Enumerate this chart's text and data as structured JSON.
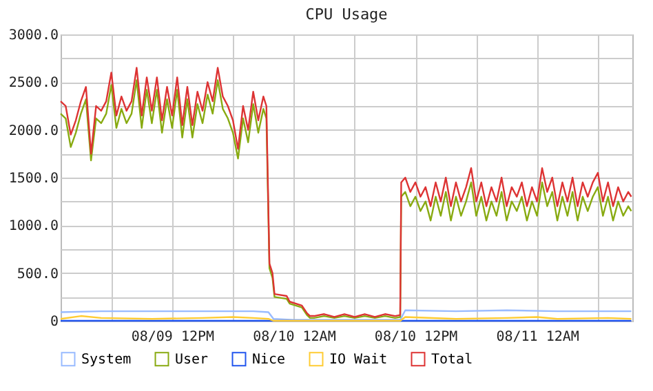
{
  "chart_data": {
    "type": "line",
    "title": "CPU Usage",
    "x": [
      "--08-09T01:00",
      "--08-09T01:30",
      "--08-09T02:00",
      "--08-09T02:30",
      "--08-09T03:00",
      "--08-09T03:30",
      "--08-09T04:00",
      "--08-09T04:30",
      "--08-09T05:00",
      "--08-09T05:30",
      "--08-09T06:00",
      "--08-09T06:30",
      "--08-09T07:00",
      "--08-09T07:30",
      "--08-09T08:00",
      "--08-09T08:30",
      "--08-09T09:00",
      "--08-09T09:30",
      "--08-09T10:00",
      "--08-09T10:30",
      "--08-09T11:00",
      "--08-09T11:30",
      "--08-09T12:00",
      "--08-09T12:30",
      "--08-09T13:00",
      "--08-09T13:30",
      "--08-09T14:00",
      "--08-09T14:30",
      "--08-09T15:00",
      "--08-09T15:30",
      "--08-09T16:00",
      "--08-09T16:30",
      "--08-09T17:00",
      "--08-09T17:30",
      "--08-09T18:00",
      "--08-09T18:30",
      "--08-09T19:00",
      "--08-09T19:30",
      "--08-09T20:00",
      "--08-09T20:30",
      "--08-09T21:00",
      "--08-09T21:18",
      "--08-09T21:36",
      "--08-09T21:54",
      "--08-09T22:06",
      "--08-09T23:18",
      "--08-09T23:36",
      "--08-10T00:48",
      "--08-10T01:18",
      "--08-10T01:36",
      "--08-10T02:00",
      "--08-10T03:00",
      "--08-10T04:00",
      "--08-10T05:00",
      "--08-10T06:00",
      "--08-10T07:00",
      "--08-10T08:00",
      "--08-10T09:00",
      "--08-10T10:00",
      "--08-10T10:30",
      "--08-10T10:36",
      "--08-10T11:00",
      "--08-10T11:30",
      "--08-10T12:00",
      "--08-10T12:30",
      "--08-10T13:00",
      "--08-10T13:30",
      "--08-10T14:00",
      "--08-10T14:30",
      "--08-10T15:00",
      "--08-10T15:30",
      "--08-10T16:00",
      "--08-10T16:30",
      "--08-10T17:00",
      "--08-10T17:30",
      "--08-10T18:00",
      "--08-10T18:30",
      "--08-10T19:00",
      "--08-10T19:30",
      "--08-10T20:00",
      "--08-10T20:30",
      "--08-10T21:00",
      "--08-10T21:30",
      "--08-10T22:00",
      "--08-10T22:30",
      "--08-10T23:00",
      "--08-10T23:30",
      "--08-11T00:00",
      "--08-11T00:30",
      "--08-11T01:00",
      "--08-11T01:30",
      "--08-11T02:00",
      "--08-11T02:30",
      "--08-11T03:00",
      "--08-11T03:30",
      "--08-11T04:00",
      "--08-11T04:30",
      "--08-11T05:00",
      "--08-11T05:30",
      "--08-11T06:00",
      "--08-11T06:30",
      "--08-11T07:00",
      "--08-11T07:30",
      "--08-11T08:00",
      "--08-11T08:30",
      "--08-11T09:00",
      "--08-11T09:18"
    ],
    "series": [
      {
        "name": "System",
        "color": "#99bbff",
        "x": [
          "--08-09T01:00",
          "--08-09T05:00",
          "--08-09T10:00",
          "--08-09T15:00",
          "--08-09T20:00",
          "--08-09T21:30",
          "--08-09T22:00",
          "--08-10T00:00",
          "--08-10T06:00",
          "--08-10T10:30",
          "--08-10T11:00",
          "--08-10T16:00",
          "--08-10T21:00",
          "--08-11T02:00",
          "--08-11T07:00",
          "--08-11T09:18"
        ],
        "values": [
          90,
          100,
          100,
          100,
          100,
          90,
          20,
          10,
          10,
          10,
          110,
          100,
          110,
          100,
          100,
          100
        ]
      },
      {
        "name": "User",
        "color": "#88aa11",
        "values": [
          2170,
          2120,
          1820,
          1970,
          2170,
          2320,
          1680,
          2120,
          2070,
          2170,
          2470,
          2020,
          2220,
          2070,
          2170,
          2520,
          2020,
          2420,
          2070,
          2420,
          1970,
          2320,
          2020,
          2420,
          1920,
          2320,
          1920,
          2270,
          2070,
          2370,
          2170,
          2520,
          2220,
          2120,
          1970,
          1700,
          2120,
          1870,
          2270,
          1970,
          2220,
          2120,
          550,
          450,
          250,
          230,
          180,
          140,
          60,
          30,
          30,
          50,
          30,
          50,
          30,
          50,
          30,
          50,
          30,
          40,
          1300,
          1350,
          1200,
          1300,
          1150,
          1250,
          1050,
          1300,
          1100,
          1350,
          1050,
          1300,
          1100,
          1250,
          1450,
          1100,
          1300,
          1050,
          1250,
          1100,
          1350,
          1050,
          1250,
          1150,
          1300,
          1050,
          1250,
          1100,
          1450,
          1200,
          1350,
          1050,
          1300,
          1100,
          1350,
          1050,
          1300,
          1150,
          1300,
          1400,
          1100,
          1300,
          1050,
          1250,
          1100,
          1200,
          1150
        ]
      },
      {
        "name": "Nice",
        "color": "#2255ee",
        "x": [
          "--08-09T01:00",
          "--08-11T09:18"
        ],
        "values": [
          0,
          0
        ]
      },
      {
        "name": "IO Wait",
        "color": "#ffcc33",
        "x": [
          "--08-09T01:00",
          "--08-09T03:00",
          "--08-09T05:00",
          "--08-09T10:00",
          "--08-09T15:00",
          "--08-09T18:00",
          "--08-09T20:00",
          "--08-09T21:30",
          "--08-09T22:00",
          "--08-10T06:00",
          "--08-10T10:30",
          "--08-10T11:00",
          "--08-10T16:00",
          "--08-10T21:00",
          "--08-11T00:00",
          "--08-11T02:00",
          "--08-11T07:00",
          "--08-11T09:18"
        ],
        "values": [
          20,
          50,
          30,
          20,
          30,
          40,
          30,
          20,
          0,
          0,
          0,
          40,
          20,
          30,
          40,
          20,
          30,
          20
        ]
      },
      {
        "name": "Total",
        "color": "#dd3333",
        "values": [
          2300,
          2250,
          1950,
          2100,
          2300,
          2450,
          1750,
          2250,
          2200,
          2300,
          2600,
          2150,
          2350,
          2200,
          2300,
          2650,
          2150,
          2550,
          2200,
          2550,
          2100,
          2450,
          2150,
          2550,
          2050,
          2450,
          2050,
          2400,
          2200,
          2500,
          2300,
          2650,
          2350,
          2250,
          2100,
          1800,
          2250,
          2000,
          2400,
          2100,
          2350,
          2250,
          600,
          500,
          280,
          260,
          200,
          160,
          80,
          50,
          50,
          70,
          40,
          70,
          40,
          70,
          40,
          70,
          50,
          60,
          1450,
          1500,
          1350,
          1450,
          1300,
          1400,
          1200,
          1450,
          1250,
          1500,
          1200,
          1450,
          1250,
          1400,
          1600,
          1250,
          1450,
          1200,
          1400,
          1250,
          1500,
          1200,
          1400,
          1300,
          1450,
          1200,
          1400,
          1250,
          1600,
          1350,
          1500,
          1200,
          1450,
          1250,
          1500,
          1200,
          1450,
          1300,
          1450,
          1550,
          1250,
          1450,
          1200,
          1400,
          1250,
          1350,
          1300
        ]
      }
    ],
    "xlim": [
      "--08-09T01:00",
      "--08-11T09:24"
    ],
    "xticks": [
      {
        "value": "--08-09T06:00",
        "label": null
      },
      {
        "value": "--08-09T12:00",
        "label": "08/09 12PM"
      },
      {
        "value": "--08-09T18:00",
        "label": null
      },
      {
        "value": "--08-10T00:00",
        "label": "08/10 12AM"
      },
      {
        "value": "--08-10T06:00",
        "label": null
      },
      {
        "value": "--08-10T12:00",
        "label": "08/10 12PM"
      },
      {
        "value": "--08-10T18:00",
        "label": null
      },
      {
        "value": "--08-11T00:00",
        "label": "08/11 12AM"
      },
      {
        "value": "--08-11T06:00",
        "label": null
      }
    ],
    "ylim": [
      0,
      3000
    ],
    "yticks": [
      0,
      {
        "value": 250,
        "label": null
      },
      {
        "value": 500,
        "label": "500.0"
      },
      {
        "value": 750,
        "label": null
      },
      {
        "value": 1000,
        "label": "1000.0"
      },
      {
        "value": 1250,
        "label": null
      },
      {
        "value": 1500,
        "label": "1500.0"
      },
      {
        "value": 1750,
        "label": null
      },
      {
        "value": 2000,
        "label": "2000.0"
      },
      {
        "value": 2250,
        "label": null
      },
      {
        "value": 2500,
        "label": "2500.0"
      },
      {
        "value": 2750,
        "label": null
      },
      {
        "value": 3000,
        "label": "3000.0"
      }
    ],
    "grid": true,
    "legend": "bottom",
    "marker": "none",
    "line_style": "solid"
  }
}
